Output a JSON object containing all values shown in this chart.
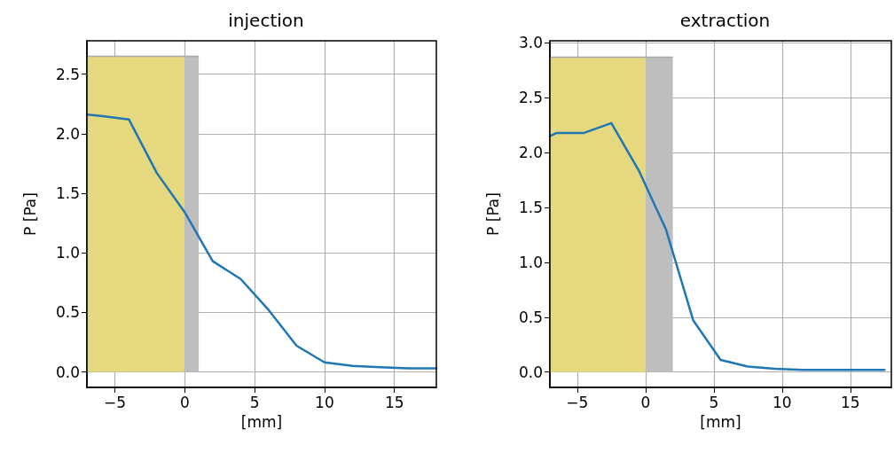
{
  "chart_data": [
    {
      "type": "line",
      "title": "injection",
      "xlabel": "[mm]",
      "ylabel": "P [Pa]",
      "xlim": [
        -7,
        18
      ],
      "ylim": [
        -0.13,
        2.78
      ],
      "xticks": [
        {
          "value": -5,
          "label": "−5"
        },
        0,
        5,
        10,
        15
      ],
      "yticks": [
        {
          "value": 0,
          "label": "0.0"
        },
        0.5,
        {
          "value": 1,
          "label": "1.0"
        },
        1.5,
        {
          "value": 2,
          "label": "2.0"
        },
        2.5
      ],
      "grid": true,
      "marker": "none",
      "line_style": "solid",
      "series": [
        {
          "type": "area",
          "color": "#e5d87e",
          "x": [
            -7,
            0
          ],
          "values": [
            2.65,
            2.65
          ]
        },
        {
          "type": "area",
          "color": "#bebebe",
          "x": [
            0,
            1
          ],
          "values": [
            2.65,
            2.65
          ]
        },
        {
          "color": "#1f77b4",
          "x": [
            -7,
            -6,
            -4,
            -2,
            0,
            2,
            4,
            6,
            8,
            10,
            12,
            14,
            16,
            18
          ],
          "values": [
            2.16,
            2.15,
            2.12,
            1.67,
            1.34,
            0.93,
            0.78,
            0.52,
            0.22,
            0.08,
            0.05,
            0.04,
            0.03,
            0.03
          ]
        }
      ]
    },
    {
      "type": "line",
      "title": "extraction",
      "xlabel": "[mm]",
      "ylabel": "P [Pa]",
      "xlim": [
        -7,
        18
      ],
      "ylim": [
        -0.14,
        3.02
      ],
      "xticks": [
        {
          "value": -5,
          "label": "−5"
        },
        0,
        5,
        10,
        15
      ],
      "yticks": [
        {
          "value": 0,
          "label": "0.0"
        },
        0.5,
        {
          "value": 1,
          "label": "1.0"
        },
        1.5,
        {
          "value": 2,
          "label": "2.0"
        },
        2.5,
        {
          "value": 3,
          "label": "3.0"
        }
      ],
      "grid": true,
      "marker": "none",
      "line_style": "solid",
      "series": [
        {
          "type": "area",
          "color": "#e5d87e",
          "x": [
            -7,
            0
          ],
          "values": [
            2.87,
            2.87
          ]
        },
        {
          "type": "area",
          "color": "#bebebe",
          "x": [
            0,
            2
          ],
          "values": [
            2.87,
            2.87
          ]
        },
        {
          "color": "#1f77b4",
          "x": [
            -7,
            -6.5,
            -4.5,
            -2.5,
            -0.5,
            1.5,
            3.5,
            5.5,
            7.5,
            9.5,
            11.5,
            13.5,
            15.5,
            17.5
          ],
          "values": [
            2.15,
            2.18,
            2.18,
            2.27,
            1.84,
            1.3,
            0.47,
            0.11,
            0.05,
            0.03,
            0.02,
            0.02,
            0.02,
            0.02
          ]
        }
      ]
    }
  ]
}
